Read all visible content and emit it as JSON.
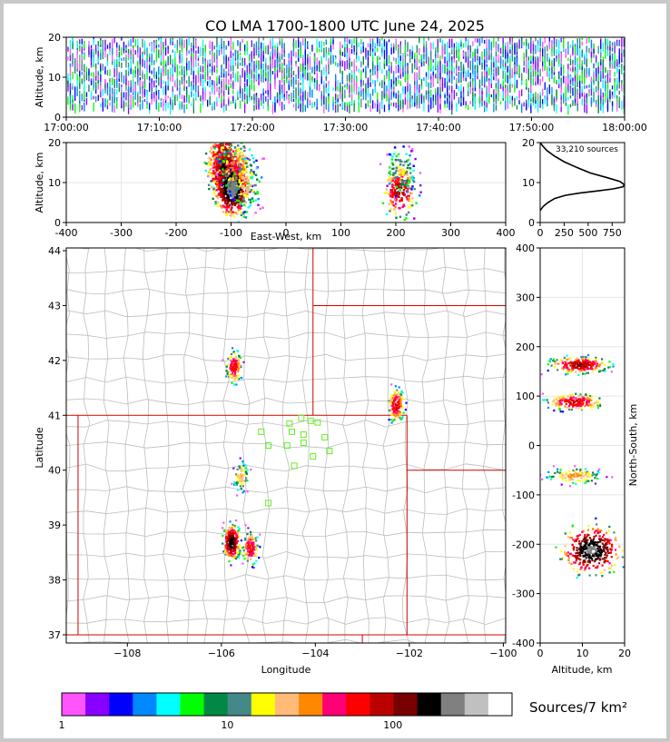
{
  "title": "CO LMA 1700-1800 UTC June 24, 2025",
  "colors": {
    "page_border": "#c8c8c8",
    "state_border": "#d40000",
    "county_border": "#bdbdbd",
    "station_marker": "#66ee22"
  },
  "chart_data": [
    {
      "id": "time_height",
      "type": "scatter",
      "ylabel": "Altitude, km",
      "xlim": [
        "17:00:00",
        "18:00:00"
      ],
      "x_ticks": [
        "17:00:00",
        "17:10:00",
        "17:20:00",
        "17:30:00",
        "17:40:00",
        "17:50:00",
        "18:00:00"
      ],
      "ylim": [
        0,
        20
      ],
      "y_ticks": [
        0,
        10,
        20
      ]
    },
    {
      "id": "ew_height",
      "type": "heatmap",
      "xlabel": "East-West, km",
      "ylabel": "Altitude, km",
      "xlim": [
        -400,
        400
      ],
      "x_ticks": [
        -400,
        -300,
        -200,
        -100,
        0,
        100,
        200,
        300,
        400
      ],
      "ylim": [
        0,
        20
      ],
      "y_ticks": [
        0,
        10,
        20
      ],
      "cells": [
        {
          "x": -115,
          "y": 16,
          "density": 120
        },
        {
          "x": -110,
          "y": 12,
          "density": 200
        },
        {
          "x": -100,
          "y": 9,
          "density": 220
        },
        {
          "x": -90,
          "y": 14,
          "density": 40
        },
        {
          "x": -75,
          "y": 10,
          "density": 25
        },
        {
          "x": 205,
          "y": 8,
          "density": 80
        },
        {
          "x": 207,
          "y": 13,
          "density": 15
        }
      ]
    },
    {
      "id": "altitude_histogram",
      "type": "line",
      "annotation": "33,210 sources",
      "xlim": [
        0,
        880
      ],
      "x_ticks": [
        0,
        250,
        500,
        750
      ],
      "ylim": [
        0,
        20
      ],
      "y_ticks": [
        0,
        10,
        20
      ],
      "x": [
        0,
        30,
        80,
        150,
        260,
        420,
        600,
        760,
        860,
        880,
        830,
        700,
        520,
        380,
        250,
        150,
        70,
        25,
        0
      ],
      "y": [
        3,
        4,
        5,
        6,
        6.8,
        7.4,
        7.9,
        8.4,
        8.9,
        9.4,
        10.3,
        11.2,
        12.4,
        13.8,
        15.2,
        16.6,
        18.0,
        19.2,
        20
      ]
    },
    {
      "id": "plan_view",
      "type": "heatmap",
      "xlabel": "Longitude",
      "ylabel": "Latitude",
      "xlim": [
        -109.3,
        -99.95
      ],
      "x_ticks": [
        -108,
        -106,
        -104,
        -102,
        -100
      ],
      "ylim": [
        36.85,
        44.05
      ],
      "y_ticks": [
        37,
        38,
        39,
        40,
        41,
        42,
        43,
        44
      ],
      "cells": [
        {
          "lon": -105.75,
          "lat": 41.9,
          "density": 60
        },
        {
          "lon": -102.3,
          "lat": 41.2,
          "density": 70
        },
        {
          "lon": -105.6,
          "lat": 39.9,
          "density": 25
        },
        {
          "lon": -105.8,
          "lat": 38.7,
          "density": 150
        },
        {
          "lon": -105.4,
          "lat": 38.6,
          "density": 60
        }
      ],
      "stations": [
        [
          -104.3,
          40.95
        ],
        [
          -104.1,
          40.9
        ],
        [
          -103.95,
          40.87
        ],
        [
          -104.55,
          40.85
        ],
        [
          -105.15,
          40.7
        ],
        [
          -104.5,
          40.7
        ],
        [
          -104.25,
          40.65
        ],
        [
          -103.8,
          40.6
        ],
        [
          -105.0,
          40.45
        ],
        [
          -104.6,
          40.45
        ],
        [
          -104.25,
          40.5
        ],
        [
          -103.7,
          40.35
        ],
        [
          -104.05,
          40.25
        ],
        [
          -104.45,
          40.08
        ],
        [
          -105.0,
          39.4
        ]
      ]
    },
    {
      "id": "ns_height",
      "type": "heatmap",
      "xlabel": "Altitude, km",
      "ylabel": "North-South, km",
      "xlim": [
        0,
        20
      ],
      "x_ticks": [
        0,
        10,
        20
      ],
      "ylim": [
        -400,
        400
      ],
      "y_ticks": [
        -400,
        -300,
        -200,
        -100,
        0,
        100,
        200,
        300,
        400
      ],
      "cells": [
        {
          "alt": 9,
          "ns": 165,
          "density": 90
        },
        {
          "alt": 8,
          "ns": 90,
          "density": 70
        },
        {
          "alt": 8,
          "ns": -60,
          "density": 30
        },
        {
          "alt": 12,
          "ns": -210,
          "density": 180
        }
      ]
    },
    {
      "id": "colorbar",
      "type": "heatmap",
      "label": "Sources/7 km²",
      "ticks": [
        1,
        10,
        100
      ],
      "colors": [
        "#ff55ff",
        "#8800ff",
        "#0000ff",
        "#0088ff",
        "#00ffff",
        "#00ff00",
        "#008844",
        "#448888",
        "#ffff00",
        "#ffbb77",
        "#ff8800",
        "#ff0077",
        "#ff0000",
        "#bb0000",
        "#770000",
        "#000000",
        "#808080",
        "#c0c0c0",
        "#ffffff"
      ]
    }
  ]
}
